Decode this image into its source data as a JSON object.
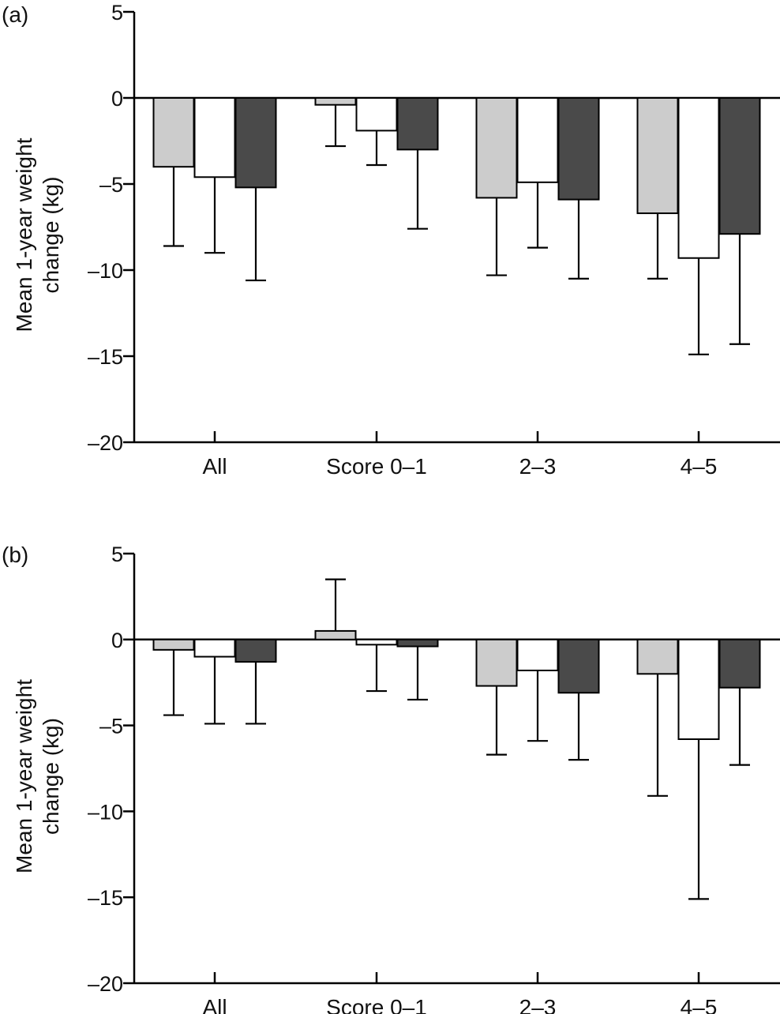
{
  "chart_data": [
    {
      "type": "bar",
      "panel_label": "(a)",
      "ylabel_lines": [
        "Mean 1-year weight",
        "change (kg)"
      ],
      "categories": [
        "All",
        "Score 0–1",
        "2–3",
        "4–5"
      ],
      "ylim": [
        -20,
        5
      ],
      "yticks": [
        5,
        0,
        -5,
        -10,
        -15,
        -20
      ],
      "ytick_labels": [
        "5",
        "0",
        "–5",
        "–10",
        "–15",
        "–20"
      ],
      "series": [
        {
          "name": "series-1",
          "color": "#cccccc",
          "values": [
            -4.0,
            -0.4,
            -5.8,
            -6.7
          ],
          "error_low": [
            -8.6,
            -2.8,
            -10.3,
            -10.5
          ]
        },
        {
          "name": "series-2",
          "color": "#ffffff",
          "values": [
            -4.6,
            -1.9,
            -4.9,
            -9.3
          ],
          "error_low": [
            -9.0,
            -3.9,
            -8.7,
            -14.9
          ]
        },
        {
          "name": "series-3",
          "color": "#4a4a4a",
          "values": [
            -5.2,
            -3.0,
            -5.9,
            -7.9
          ],
          "error_low": [
            -10.6,
            -7.6,
            -10.5,
            -14.3
          ]
        }
      ]
    },
    {
      "type": "bar",
      "panel_label": "(b)",
      "ylabel_lines": [
        "Mean 1-year weight",
        "change (kg)"
      ],
      "categories": [
        "All",
        "Score 0–1",
        "2–3",
        "4–5"
      ],
      "ylim": [
        -20,
        5
      ],
      "yticks": [
        5,
        0,
        -5,
        -10,
        -15,
        -20
      ],
      "ytick_labels": [
        "5",
        "0",
        "–5",
        "–10",
        "–15",
        "–20"
      ],
      "series": [
        {
          "name": "series-1",
          "color": "#cccccc",
          "values": [
            -0.6,
            0.5,
            -2.7,
            -2.0
          ],
          "error_low": [
            -4.4,
            3.5,
            -6.7,
            -9.1
          ]
        },
        {
          "name": "series-2",
          "color": "#ffffff",
          "values": [
            -1.0,
            -0.3,
            -1.8,
            -5.8
          ],
          "error_low": [
            -4.9,
            -3.0,
            -5.9,
            -15.1
          ]
        },
        {
          "name": "series-3",
          "color": "#4a4a4a",
          "values": [
            -1.3,
            -0.4,
            -3.1,
            -2.8
          ],
          "error_low": [
            -4.9,
            -3.5,
            -7.0,
            -7.3
          ]
        }
      ]
    }
  ]
}
